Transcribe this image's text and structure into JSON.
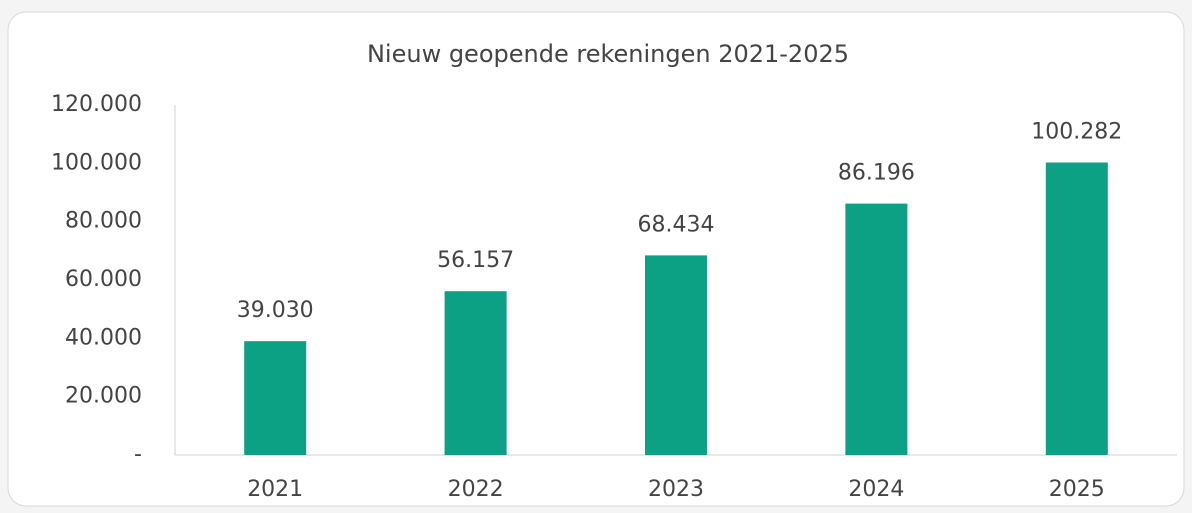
{
  "chart_data": {
    "type": "bar",
    "title": "Nieuw geopende rekeningen 2021-2025",
    "categories": [
      "2021",
      "2022",
      "2023",
      "2024",
      "2025"
    ],
    "values": [
      39030,
      56157,
      68434,
      86196,
      100282
    ],
    "value_labels": [
      "39.030",
      "56.157",
      "68.434",
      "86.196",
      "100.282"
    ],
    "color": "#0ca084",
    "ylim": [
      0,
      120000
    ],
    "yticks": [
      {
        "value": 0,
        "label": "-"
      },
      {
        "value": 20000,
        "label": "20.000"
      },
      {
        "value": 40000,
        "label": "40.000"
      },
      {
        "value": 60000,
        "label": "60.000"
      },
      {
        "value": 80000,
        "label": "80.000"
      },
      {
        "value": 100000,
        "label": "100.000"
      },
      {
        "value": 120000,
        "label": "120.000"
      }
    ],
    "grid": false
  }
}
